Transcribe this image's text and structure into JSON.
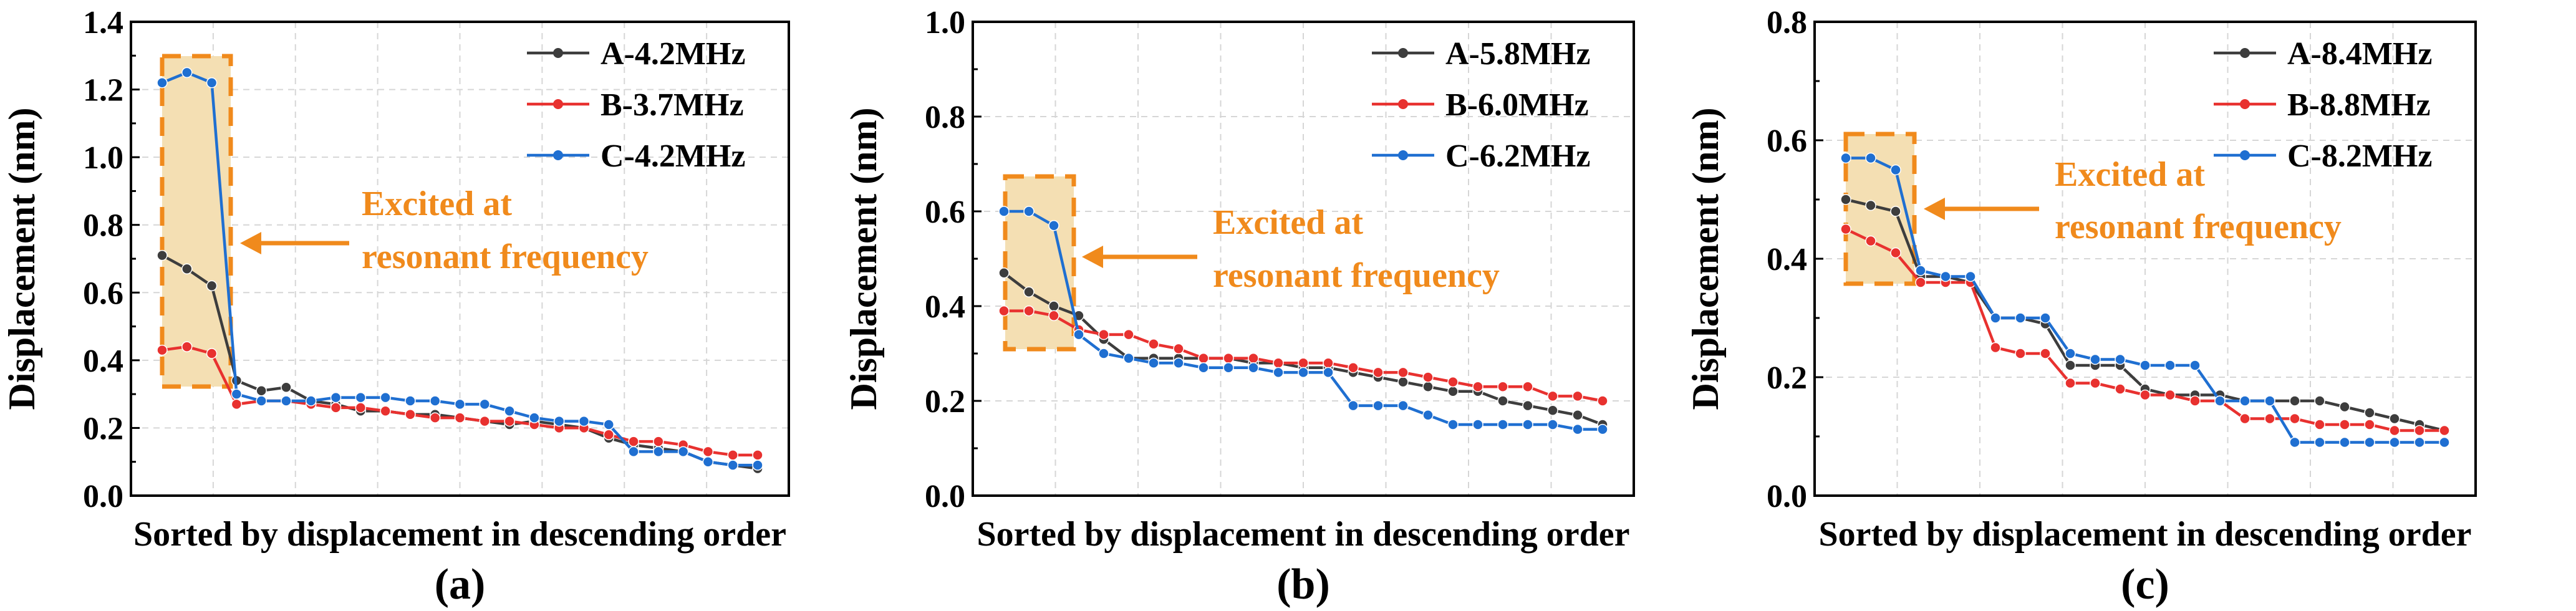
{
  "chart_data": [
    {
      "type": "line",
      "panel_label": "(a)",
      "xlabel": "Sorted by displacement in descending order",
      "ylabel": "Displacement (nm)",
      "ylim": [
        0.0,
        1.4
      ],
      "yticks": [
        "0.0",
        "0.2",
        "0.4",
        "0.6",
        "0.8",
        "1.0",
        "1.2",
        "1.4"
      ],
      "grid": true,
      "legend_position": "top-right",
      "x": [
        1,
        2,
        3,
        4,
        5,
        6,
        7,
        8,
        9,
        10,
        11,
        12,
        13,
        14,
        15,
        16,
        17,
        18,
        19,
        20,
        21,
        22,
        23,
        24,
        25
      ],
      "series": [
        {
          "name": "A-4.2MHz",
          "color": "#3d3d3d",
          "values": [
            0.71,
            0.67,
            0.62,
            0.34,
            0.31,
            0.32,
            0.28,
            0.27,
            0.25,
            0.25,
            0.24,
            0.24,
            0.23,
            0.22,
            0.21,
            0.22,
            0.21,
            0.2,
            0.17,
            0.15,
            0.14,
            0.13,
            0.1,
            0.09,
            0.08
          ]
        },
        {
          "name": "B-3.7MHz",
          "color": "#e8312f",
          "values": [
            0.43,
            0.44,
            0.42,
            0.27,
            0.28,
            0.28,
            0.27,
            0.26,
            0.26,
            0.25,
            0.24,
            0.23,
            0.23,
            0.22,
            0.22,
            0.21,
            0.2,
            0.2,
            0.18,
            0.16,
            0.16,
            0.15,
            0.13,
            0.12,
            0.12
          ]
        },
        {
          "name": "C-4.2MHz",
          "color": "#1f6fd1",
          "values": [
            1.22,
            1.25,
            1.22,
            0.3,
            0.28,
            0.28,
            0.28,
            0.29,
            0.29,
            0.29,
            0.28,
            0.28,
            0.27,
            0.27,
            0.25,
            0.23,
            0.22,
            0.22,
            0.21,
            0.13,
            0.13,
            0.13,
            0.1,
            0.09,
            0.09
          ]
        }
      ],
      "annotation": {
        "lines": [
          "Excited at",
          "resonant frequency"
        ]
      }
    },
    {
      "type": "line",
      "panel_label": "(b)",
      "xlabel": "Sorted by displacement in descending order",
      "ylabel": "Displacement (nm)",
      "ylim": [
        0.0,
        1.0
      ],
      "yticks": [
        "0.0",
        "0.2",
        "0.4",
        "0.6",
        "0.8",
        "1.0"
      ],
      "grid": true,
      "legend_position": "top-right",
      "x": [
        1,
        2,
        3,
        4,
        5,
        6,
        7,
        8,
        9,
        10,
        11,
        12,
        13,
        14,
        15,
        16,
        17,
        18,
        19,
        20,
        21,
        22,
        23,
        24,
        25
      ],
      "series": [
        {
          "name": "A-5.8MHz",
          "color": "#3d3d3d",
          "values": [
            0.47,
            0.43,
            0.4,
            0.38,
            0.33,
            0.29,
            0.29,
            0.29,
            0.29,
            0.29,
            0.28,
            0.28,
            0.27,
            0.27,
            0.26,
            0.25,
            0.24,
            0.23,
            0.22,
            0.22,
            0.2,
            0.19,
            0.18,
            0.17,
            0.15
          ]
        },
        {
          "name": "B-6.0MHz",
          "color": "#e8312f",
          "values": [
            0.39,
            0.39,
            0.38,
            0.35,
            0.34,
            0.34,
            0.32,
            0.31,
            0.29,
            0.29,
            0.29,
            0.28,
            0.28,
            0.28,
            0.27,
            0.26,
            0.26,
            0.25,
            0.24,
            0.23,
            0.23,
            0.23,
            0.21,
            0.21,
            0.2
          ]
        },
        {
          "name": "C-6.2MHz",
          "color": "#1f6fd1",
          "values": [
            0.6,
            0.6,
            0.57,
            0.34,
            0.3,
            0.29,
            0.28,
            0.28,
            0.27,
            0.27,
            0.27,
            0.26,
            0.26,
            0.26,
            0.19,
            0.19,
            0.19,
            0.17,
            0.15,
            0.15,
            0.15,
            0.15,
            0.15,
            0.14,
            0.14
          ]
        }
      ],
      "annotation": {
        "lines": [
          "Excited at",
          "resonant frequency"
        ]
      }
    },
    {
      "type": "line",
      "panel_label": "(c)",
      "xlabel": "Sorted by displacement in descending order",
      "ylabel": "Displacement (nm)",
      "ylim": [
        0.0,
        0.8
      ],
      "yticks": [
        "0.0",
        "0.2",
        "0.4",
        "0.6",
        "0.8"
      ],
      "grid": true,
      "legend_position": "top-right",
      "x": [
        1,
        2,
        3,
        4,
        5,
        6,
        7,
        8,
        9,
        10,
        11,
        12,
        13,
        14,
        15,
        16,
        17,
        18,
        19,
        20,
        21,
        22,
        23,
        24,
        25
      ],
      "series": [
        {
          "name": "A-8.4MHz",
          "color": "#3d3d3d",
          "values": [
            0.5,
            0.49,
            0.48,
            0.37,
            0.37,
            0.36,
            0.3,
            0.3,
            0.29,
            0.22,
            0.22,
            0.22,
            0.18,
            0.17,
            0.17,
            0.17,
            0.16,
            0.16,
            0.16,
            0.16,
            0.15,
            0.14,
            0.13,
            0.12,
            0.11
          ]
        },
        {
          "name": "B-8.8MHz",
          "color": "#e8312f",
          "values": [
            0.45,
            0.43,
            0.41,
            0.36,
            0.36,
            0.36,
            0.25,
            0.24,
            0.24,
            0.19,
            0.19,
            0.18,
            0.17,
            0.17,
            0.16,
            0.16,
            0.13,
            0.13,
            0.13,
            0.12,
            0.12,
            0.12,
            0.11,
            0.11,
            0.11
          ]
        },
        {
          "name": "C-8.2MHz",
          "color": "#1f6fd1",
          "values": [
            0.57,
            0.57,
            0.55,
            0.38,
            0.37,
            0.37,
            0.3,
            0.3,
            0.3,
            0.24,
            0.23,
            0.23,
            0.22,
            0.22,
            0.22,
            0.16,
            0.16,
            0.16,
            0.09,
            0.09,
            0.09,
            0.09,
            0.09,
            0.09,
            0.09
          ]
        }
      ],
      "annotation": {
        "lines": [
          "Excited at",
          "resonant frequency"
        ]
      }
    }
  ]
}
